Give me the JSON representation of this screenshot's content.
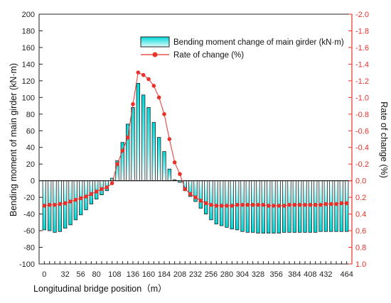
{
  "chart_data": {
    "type": "bar",
    "x_label": "Longitudinal bridge position（m）",
    "y_left_label": "Bending moment of main girder (kN·m)",
    "y_right_label": "Rate of change (%)",
    "y_left_lim": [
      -100,
      200
    ],
    "y_left_ticks": [
      "200",
      "180",
      "160",
      "140",
      "120",
      "100",
      "80",
      "60",
      "40",
      "20",
      "0",
      "-20",
      "-40",
      "-60",
      "-80",
      "-100"
    ],
    "y_right_lim": [
      1.0,
      -2.0
    ],
    "y_right_ticks": [
      "-2.0",
      "-1.8",
      "-1.6",
      "-1.4",
      "-1.2",
      "-1.0",
      "-0.8",
      "-0.6",
      "-0.4",
      "-0.2",
      "0.0",
      "0.2",
      "0.4",
      "0.6",
      "0.8",
      "1.0"
    ],
    "x_tick_labels": [
      "0",
      "32",
      "56",
      "80",
      "108",
      "136",
      "160",
      "184",
      "208",
      "232",
      "256",
      "280",
      "304",
      "328",
      "356",
      "384",
      "408",
      "432",
      "464"
    ],
    "legend": {
      "bar_label": "Bending moment change of main girder (kN·m)",
      "line_label": "Rate of change (%)"
    },
    "colors": {
      "bar_top": "#00e5e5",
      "bar_bottom": "#ffffff",
      "bar_edge": "#222222",
      "line": "#e8322b",
      "right_axis": "#e8322b"
    },
    "x": [
      0,
      8,
      16,
      24,
      32,
      40,
      48,
      56,
      64,
      72,
      80,
      88,
      96,
      104,
      112,
      120,
      128,
      136,
      144,
      152,
      160,
      168,
      176,
      184,
      192,
      200,
      208,
      216,
      224,
      232,
      240,
      248,
      256,
      264,
      272,
      280,
      288,
      296,
      304,
      312,
      320,
      328,
      336,
      344,
      352,
      360,
      368,
      376,
      384,
      392,
      400,
      408,
      416,
      424,
      432,
      440,
      448,
      456,
      464
    ],
    "series": [
      {
        "name": "Bending moment change of main girder (kN·m)",
        "axis": "left",
        "values": [
          -59,
          -60,
          -62,
          -61,
          -57,
          -53,
          -47,
          -41,
          -35,
          -28,
          -22,
          -17,
          -12,
          3,
          24,
          46,
          68,
          88,
          117,
          103,
          88,
          70,
          52,
          35,
          14,
          1,
          -2,
          -12,
          -19,
          -25,
          -33,
          -40,
          -47,
          -52,
          -54,
          -56,
          -58,
          -59,
          -61,
          -62,
          -62,
          -63,
          -63,
          -63,
          -63,
          -63,
          -62,
          -62,
          -62,
          -62,
          -62,
          -62,
          -62,
          -61,
          -61,
          -61,
          -61,
          -61,
          -61
        ]
      },
      {
        "name": "Rate of change (%)",
        "axis": "right",
        "values": [
          0.3,
          0.29,
          0.29,
          0.28,
          0.27,
          0.25,
          0.23,
          0.21,
          0.19,
          0.16,
          0.13,
          0.1,
          0.08,
          0.03,
          -0.2,
          -0.36,
          -0.52,
          -0.92,
          -1.3,
          -1.27,
          -1.22,
          -1.14,
          -1.0,
          -0.8,
          -0.5,
          -0.22,
          -0.08,
          0.1,
          0.16,
          0.2,
          0.24,
          0.27,
          0.29,
          0.3,
          0.3,
          0.3,
          0.3,
          0.29,
          0.29,
          0.29,
          0.29,
          0.29,
          0.29,
          0.3,
          0.3,
          0.3,
          0.3,
          0.29,
          0.29,
          0.29,
          0.29,
          0.29,
          0.29,
          0.29,
          0.28,
          0.28,
          0.28,
          0.27,
          0.27
        ]
      }
    ],
    "grid": false,
    "legend_position": "top-right"
  }
}
